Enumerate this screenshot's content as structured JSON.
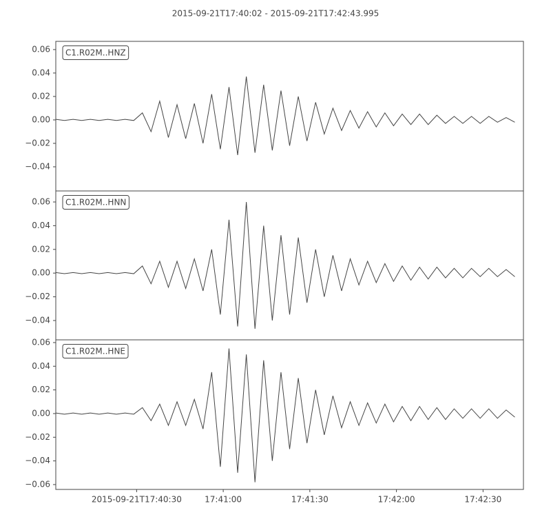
{
  "title": "2015-09-21T17:40:02  -  2015-09-21T17:42:43.995",
  "chart_data": [
    {
      "type": "line",
      "xlim": [
        "2015-09-21T17:40:02",
        "2015-09-21T17:42:43.995"
      ],
      "ylim": [
        -0.0606,
        0.067
      ],
      "yticks": [
        {
          "value": -0.04,
          "label": "−0.04"
        },
        {
          "value": -0.02,
          "label": "−0.02"
        },
        {
          "value": 0,
          "label": "0.00"
        },
        {
          "value": 0.02,
          "label": "0.02"
        },
        {
          "value": 0.04,
          "label": "0.04"
        },
        {
          "value": 0.06,
          "label": "0.06"
        }
      ],
      "x": [
        "2015-09-21T17:40:02",
        "2015-09-21T17:40:05",
        "2015-09-21T17:40:08",
        "2015-09-21T17:40:11",
        "2015-09-21T17:40:14",
        "2015-09-21T17:40:17",
        "2015-09-21T17:40:20",
        "2015-09-21T17:40:23",
        "2015-09-21T17:40:26",
        "2015-09-21T17:40:29",
        "2015-09-21T17:40:32",
        "2015-09-21T17:40:35",
        "2015-09-21T17:40:38",
        "2015-09-21T17:40:41",
        "2015-09-21T17:40:44",
        "2015-09-21T17:40:47",
        "2015-09-21T17:40:50",
        "2015-09-21T17:40:53",
        "2015-09-21T17:40:56",
        "2015-09-21T17:40:59",
        "2015-09-21T17:41:02",
        "2015-09-21T17:41:05",
        "2015-09-21T17:41:08",
        "2015-09-21T17:41:11",
        "2015-09-21T17:41:14",
        "2015-09-21T17:41:17",
        "2015-09-21T17:41:20",
        "2015-09-21T17:41:23",
        "2015-09-21T17:41:26",
        "2015-09-21T17:41:29",
        "2015-09-21T17:41:32",
        "2015-09-21T17:41:35",
        "2015-09-21T17:41:38",
        "2015-09-21T17:41:41",
        "2015-09-21T17:41:44",
        "2015-09-21T17:41:47",
        "2015-09-21T17:41:50",
        "2015-09-21T17:41:53",
        "2015-09-21T17:41:56",
        "2015-09-21T17:41:59",
        "2015-09-21T17:42:02",
        "2015-09-21T17:42:05",
        "2015-09-21T17:42:08",
        "2015-09-21T17:42:11",
        "2015-09-21T17:42:14",
        "2015-09-21T17:42:17",
        "2015-09-21T17:42:20",
        "2015-09-21T17:42:23",
        "2015-09-21T17:42:26",
        "2015-09-21T17:42:29",
        "2015-09-21T17:42:32",
        "2015-09-21T17:42:35",
        "2015-09-21T17:42:38",
        "2015-09-21T17:42:41"
      ],
      "series": [
        {
          "name": "C1.R02M..HNZ",
          "color": "#444444",
          "values": [
            0.0005,
            -0.0005,
            0.0005,
            -0.0005,
            0.0005,
            -0.0005,
            0.0005,
            -0.0005,
            0.0005,
            -0.0005,
            0.006,
            -0.01,
            0.016,
            -0.015,
            0.013,
            -0.016,
            0.014,
            -0.02,
            0.022,
            -0.025,
            0.028,
            -0.03,
            0.037,
            -0.028,
            0.03,
            -0.026,
            0.025,
            -0.022,
            0.02,
            -0.018,
            0.015,
            -0.012,
            0.01,
            -0.009,
            0.008,
            -0.007,
            0.007,
            -0.006,
            0.006,
            -0.005,
            0.005,
            -0.004,
            0.005,
            -0.004,
            0.004,
            -0.003,
            0.003,
            -0.003,
            0.003,
            -0.003,
            0.003,
            -0.002,
            0.002,
            -0.002
          ]
        }
      ]
    },
    {
      "type": "line",
      "xlim": [
        "2015-09-21T17:40:02",
        "2015-09-21T17:42:43.995"
      ],
      "ylim": [
        -0.0563,
        0.0693
      ],
      "yticks": [
        {
          "value": -0.04,
          "label": "−0.04"
        },
        {
          "value": -0.02,
          "label": "−0.02"
        },
        {
          "value": 0,
          "label": "0.00"
        },
        {
          "value": 0.02,
          "label": "0.02"
        },
        {
          "value": 0.04,
          "label": "0.04"
        },
        {
          "value": 0.06,
          "label": "0.06"
        }
      ],
      "x": [
        "2015-09-21T17:40:02",
        "2015-09-21T17:40:05",
        "2015-09-21T17:40:08",
        "2015-09-21T17:40:11",
        "2015-09-21T17:40:14",
        "2015-09-21T17:40:17",
        "2015-09-21T17:40:20",
        "2015-09-21T17:40:23",
        "2015-09-21T17:40:26",
        "2015-09-21T17:40:29",
        "2015-09-21T17:40:32",
        "2015-09-21T17:40:35",
        "2015-09-21T17:40:38",
        "2015-09-21T17:40:41",
        "2015-09-21T17:40:44",
        "2015-09-21T17:40:47",
        "2015-09-21T17:40:50",
        "2015-09-21T17:40:53",
        "2015-09-21T17:40:56",
        "2015-09-21T17:40:59",
        "2015-09-21T17:41:02",
        "2015-09-21T17:41:05",
        "2015-09-21T17:41:08",
        "2015-09-21T17:41:11",
        "2015-09-21T17:41:14",
        "2015-09-21T17:41:17",
        "2015-09-21T17:41:20",
        "2015-09-21T17:41:23",
        "2015-09-21T17:41:26",
        "2015-09-21T17:41:29",
        "2015-09-21T17:41:32",
        "2015-09-21T17:41:35",
        "2015-09-21T17:41:38",
        "2015-09-21T17:41:41",
        "2015-09-21T17:41:44",
        "2015-09-21T17:41:47",
        "2015-09-21T17:41:50",
        "2015-09-21T17:41:53",
        "2015-09-21T17:41:56",
        "2015-09-21T17:41:59",
        "2015-09-21T17:42:02",
        "2015-09-21T17:42:05",
        "2015-09-21T17:42:08",
        "2015-09-21T17:42:11",
        "2015-09-21T17:42:14",
        "2015-09-21T17:42:17",
        "2015-09-21T17:42:20",
        "2015-09-21T17:42:23",
        "2015-09-21T17:42:26",
        "2015-09-21T17:42:29",
        "2015-09-21T17:42:32",
        "2015-09-21T17:42:35",
        "2015-09-21T17:42:38",
        "2015-09-21T17:42:41"
      ],
      "series": [
        {
          "name": "C1.R02M..HNN",
          "color": "#444444",
          "values": [
            0.0005,
            -0.0005,
            0.0005,
            -0.0005,
            0.0005,
            -0.0005,
            0.0005,
            -0.0005,
            0.0005,
            -0.0005,
            0.006,
            -0.009,
            0.01,
            -0.012,
            0.01,
            -0.013,
            0.012,
            -0.015,
            0.02,
            -0.035,
            0.045,
            -0.045,
            0.06,
            -0.047,
            0.04,
            -0.04,
            0.032,
            -0.035,
            0.03,
            -0.025,
            0.02,
            -0.02,
            0.015,
            -0.015,
            0.012,
            -0.01,
            0.01,
            -0.008,
            0.008,
            -0.007,
            0.006,
            -0.006,
            0.005,
            -0.005,
            0.005,
            -0.004,
            0.004,
            -0.004,
            0.004,
            -0.003,
            0.004,
            -0.003,
            0.003,
            -0.003
          ]
        }
      ]
    },
    {
      "type": "line",
      "xlim": [
        "2015-09-21T17:40:02",
        "2015-09-21T17:42:43.995"
      ],
      "ylim": [
        -0.0641,
        0.0623
      ],
      "yticks": [
        {
          "value": -0.06,
          "label": "−0.06"
        },
        {
          "value": -0.04,
          "label": "−0.04"
        },
        {
          "value": -0.02,
          "label": "−0.02"
        },
        {
          "value": 0,
          "label": "0.00"
        },
        {
          "value": 0.02,
          "label": "0.02"
        },
        {
          "value": 0.04,
          "label": "0.04"
        },
        {
          "value": 0.06,
          "label": "0.06"
        }
      ],
      "xticks": [
        "2015-09-21T17:40:30",
        {
          "value": "2015-09-21T17:41:00",
          "label": "17:41:00"
        },
        {
          "value": "2015-09-21T17:41:30",
          "label": "17:41:30"
        },
        {
          "value": "2015-09-21T17:42:00",
          "label": "17:42:00"
        },
        {
          "value": "2015-09-21T17:42:30",
          "label": "17:42:30"
        }
      ],
      "x": [
        "2015-09-21T17:40:02",
        "2015-09-21T17:40:05",
        "2015-09-21T17:40:08",
        "2015-09-21T17:40:11",
        "2015-09-21T17:40:14",
        "2015-09-21T17:40:17",
        "2015-09-21T17:40:20",
        "2015-09-21T17:40:23",
        "2015-09-21T17:40:26",
        "2015-09-21T17:40:29",
        "2015-09-21T17:40:32",
        "2015-09-21T17:40:35",
        "2015-09-21T17:40:38",
        "2015-09-21T17:40:41",
        "2015-09-21T17:40:44",
        "2015-09-21T17:40:47",
        "2015-09-21T17:40:50",
        "2015-09-21T17:40:53",
        "2015-09-21T17:40:56",
        "2015-09-21T17:40:59",
        "2015-09-21T17:41:02",
        "2015-09-21T17:41:05",
        "2015-09-21T17:41:08",
        "2015-09-21T17:41:11",
        "2015-09-21T17:41:14",
        "2015-09-21T17:41:17",
        "2015-09-21T17:41:20",
        "2015-09-21T17:41:23",
        "2015-09-21T17:41:26",
        "2015-09-21T17:41:29",
        "2015-09-21T17:41:32",
        "2015-09-21T17:41:35",
        "2015-09-21T17:41:38",
        "2015-09-21T17:41:41",
        "2015-09-21T17:41:44",
        "2015-09-21T17:41:47",
        "2015-09-21T17:41:50",
        "2015-09-21T17:41:53",
        "2015-09-21T17:41:56",
        "2015-09-21T17:41:59",
        "2015-09-21T17:42:02",
        "2015-09-21T17:42:05",
        "2015-09-21T17:42:08",
        "2015-09-21T17:42:11",
        "2015-09-21T17:42:14",
        "2015-09-21T17:42:17",
        "2015-09-21T17:42:20",
        "2015-09-21T17:42:23",
        "2015-09-21T17:42:26",
        "2015-09-21T17:42:29",
        "2015-09-21T17:42:32",
        "2015-09-21T17:42:35",
        "2015-09-21T17:42:38",
        "2015-09-21T17:42:41"
      ],
      "series": [
        {
          "name": "C1.R02M..HNE",
          "color": "#444444",
          "values": [
            0.0005,
            -0.0005,
            0.0005,
            -0.0005,
            0.0005,
            -0.0005,
            0.0005,
            -0.0005,
            0.0005,
            -0.0005,
            0.005,
            -0.006,
            0.008,
            -0.01,
            0.01,
            -0.01,
            0.012,
            -0.013,
            0.035,
            -0.045,
            0.055,
            -0.05,
            0.05,
            -0.058,
            0.045,
            -0.04,
            0.035,
            -0.03,
            0.03,
            -0.025,
            0.02,
            -0.018,
            0.015,
            -0.012,
            0.01,
            -0.01,
            0.009,
            -0.008,
            0.008,
            -0.007,
            0.006,
            -0.006,
            0.006,
            -0.005,
            0.005,
            -0.005,
            0.004,
            -0.004,
            0.004,
            -0.004,
            0.004,
            -0.004,
            0.003,
            -0.003
          ]
        }
      ]
    }
  ]
}
